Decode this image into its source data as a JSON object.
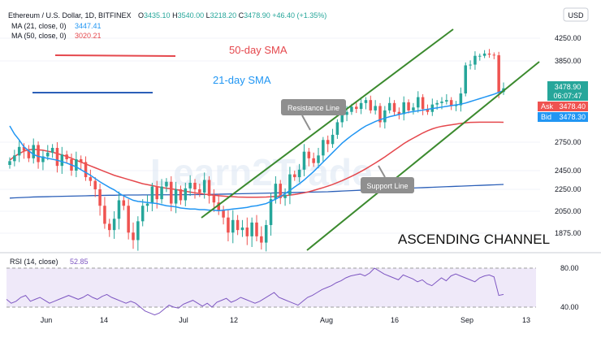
{
  "header": {
    "pair": "Ethereum / U.S. Dollar, 1D, BITFINEX",
    "ohlc": [
      {
        "key": "O",
        "val": "3435.10"
      },
      {
        "key": "H",
        "val": "3540.00"
      },
      {
        "key": "L",
        "val": "3218.20"
      },
      {
        "key": "C",
        "val": "3478.90"
      }
    ],
    "change": "+46.40 (+1.35%)",
    "ma21_label": "MA (21, close, 0)",
    "ma21_value": "3447.41",
    "ma50_label": "MA (50, close, 0)",
    "ma50_value": "3020.21",
    "currency": "USD"
  },
  "annotations": {
    "sma50": "50-day SMA",
    "sma21": "21-day SMA",
    "resistance": "Resistance Line",
    "support": "Support Line",
    "channel": "ASCENDING CHANNEL",
    "watermark": "Learn2Trade"
  },
  "price_tags": {
    "last": "3478.90",
    "countdown": "06:07:47",
    "ask_label": "Ask",
    "ask": "3478.40",
    "bid_label": "Bid",
    "bid": "3478.30"
  },
  "rsi": {
    "label": "RSI (14, close)",
    "value": "52.85"
  },
  "colors": {
    "up": "#26a69a",
    "down": "#ef5350",
    "ma21": "#2196f3",
    "ma50": "#e5484d",
    "channel": "#3b8a2e",
    "rsi": "#7e57c2"
  },
  "chart_data": [
    {
      "type": "candlestick",
      "title": "Ethereum / U.S. Dollar, 1D, BITFINEX",
      "x_ticks": [
        "Jun",
        "14",
        "Jul",
        "12",
        "Aug",
        "16",
        "Sep",
        "13"
      ],
      "y_ticks": [
        "4250.00",
        "3850.00",
        "2750.00",
        "2450.00",
        "2250.00",
        "2050.00",
        "1875.00"
      ],
      "ylim": [
        1720,
        4520
      ],
      "close": [
        2550,
        2610,
        2700,
        2660,
        2580,
        2720,
        2540,
        2600,
        2640,
        2690,
        2500,
        2620,
        2570,
        2450,
        2570,
        2540,
        2380,
        2340,
        2250,
        2100,
        1950,
        1900,
        1990,
        2150,
        2100,
        1880,
        1820,
        1970,
        2100,
        2120,
        2280,
        2160,
        2280,
        2330,
        2120,
        2250,
        2150,
        2260,
        2320,
        2250,
        2220,
        2350,
        2190,
        2130,
        2060,
        2000,
        1880,
        1980,
        1900,
        1920,
        1850,
        1960,
        1850,
        1800,
        1940,
        2160,
        2310,
        2170,
        2200,
        2410,
        2380,
        2460,
        2650,
        2580,
        2530,
        2610,
        2780,
        2730,
        2850,
        3020,
        3120,
        3160,
        3230,
        3200,
        3280,
        3320,
        3180,
        3240,
        3020,
        3180,
        3280,
        3160,
        3130,
        3290,
        3180,
        3220,
        3360,
        3200,
        3160,
        3260,
        3280,
        3300,
        3320,
        3240,
        3250,
        3410,
        3790,
        3800,
        3940,
        3940,
        3980,
        3960,
        3950,
        3430,
        3479
      ],
      "ma21": [
        2970,
        2860,
        2780,
        2700,
        2660,
        2620,
        2600,
        2590,
        2580,
        2570,
        2560,
        2545,
        2530,
        2510,
        2490,
        2460,
        2430,
        2400,
        2365,
        2330,
        2300,
        2270,
        2245,
        2215,
        2190,
        2170,
        2150,
        2140,
        2135,
        2130,
        2125,
        2120,
        2110,
        2100,
        2095,
        2090,
        2080,
        2075,
        2070,
        2070,
        2065,
        2065,
        2060,
        2060,
        2055,
        2060,
        2065,
        2070,
        2075,
        2080,
        2085,
        2095,
        2100,
        2110,
        2120,
        2140,
        2160,
        2185,
        2210,
        2240,
        2275,
        2310,
        2350,
        2395,
        2440,
        2490,
        2540,
        2590,
        2640,
        2690,
        2740,
        2790,
        2840,
        2885,
        2930,
        2970,
        3000,
        3030,
        3055,
        3075,
        3095,
        3110,
        3125,
        3140,
        3155,
        3165,
        3175,
        3185,
        3195,
        3205,
        3215,
        3225,
        3235,
        3245,
        3255,
        3265,
        3280,
        3300,
        3320,
        3340,
        3360,
        3380,
        3400,
        3425,
        3447
      ],
      "ma50": [
        2560,
        2600,
        2630,
        2655,
        2670,
        2675,
        2670,
        2665,
        2655,
        2645,
        2630,
        2615,
        2600,
        2580,
        2560,
        2540,
        2520,
        2500,
        2480,
        2460,
        2440,
        2420,
        2400,
        2385,
        2370,
        2355,
        2340,
        2325,
        2310,
        2300,
        2290,
        2280,
        2270,
        2262,
        2255,
        2248,
        2240,
        2232,
        2225,
        2218,
        2212,
        2206,
        2200,
        2196,
        2192,
        2188,
        2184,
        2182,
        2180,
        2179,
        2178,
        2178,
        2178,
        2179,
        2180,
        2182,
        2185,
        2188,
        2192,
        2197,
        2203,
        2210,
        2218,
        2228,
        2240,
        2253,
        2268,
        2284,
        2302,
        2322,
        2343,
        2366,
        2390,
        2415,
        2442,
        2470,
        2500,
        2530,
        2562,
        2595,
        2630,
        2665,
        2700,
        2735,
        2770,
        2805,
        2840,
        2875,
        2905,
        2930,
        2950,
        2965,
        2975,
        2985,
        2995,
        3005,
        3012,
        3018,
        3020,
        3021,
        3021,
        3021,
        3021,
        3021,
        3020
      ],
      "ma200": [
        2170,
        2172,
        2174,
        2176,
        2178,
        2180,
        2181,
        2182,
        2183,
        2184,
        2185,
        2186,
        2187,
        2188,
        2189,
        2190,
        2191,
        2192,
        2193,
        2194,
        2195,
        2196,
        2196,
        2197,
        2197,
        2198,
        2198,
        2198,
        2199,
        2199,
        2199,
        2200,
        2200,
        2200,
        2200,
        2200,
        2201,
        2201,
        2201,
        2202,
        2202,
        2203,
        2203,
        2204,
        2205,
        2206,
        2207,
        2208,
        2209,
        2210,
        2211,
        2212,
        2213,
        2214,
        2215,
        2216,
        2217,
        2218,
        2219,
        2220,
        2221,
        2222,
        2223,
        2224,
        2225,
        2226,
        2227,
        2228,
        2230,
        2232,
        2234,
        2236,
        2238,
        2240,
        2242,
        2244,
        2246,
        2248,
        2250,
        2252,
        2254,
        2256,
        2258,
        2260,
        2262,
        2264,
        2266,
        2268,
        2270,
        2272,
        2274,
        2276,
        2278,
        2280,
        2282,
        2284,
        2286,
        2288,
        2290,
        2292,
        2294,
        2296,
        2298,
        2300,
        2302
      ]
    },
    {
      "type": "line",
      "title": "RSI (14, close)",
      "y_ticks": [
        "80.00",
        "40.00"
      ],
      "ylim": [
        20,
        86
      ],
      "values": [
        48,
        44,
        46,
        50,
        52,
        46,
        48,
        50,
        47,
        44,
        46,
        48,
        50,
        52,
        50,
        48,
        50,
        53,
        50,
        48,
        51,
        53,
        50,
        48,
        46,
        44,
        46,
        44,
        40,
        36,
        34,
        32,
        34,
        38,
        42,
        40,
        39,
        43,
        45,
        47,
        44,
        41,
        44,
        40,
        45,
        47,
        49,
        45,
        47,
        50,
        48,
        46,
        44,
        46,
        49,
        52,
        55,
        50,
        48,
        46,
        44,
        42,
        46,
        50,
        52,
        55,
        58,
        60,
        62,
        65,
        67,
        70,
        72,
        73,
        74,
        72,
        75,
        80,
        77,
        74,
        72,
        70,
        68,
        73,
        71,
        69,
        66,
        68,
        64,
        62,
        66,
        70,
        67,
        72,
        74,
        72,
        70,
        68,
        66,
        70,
        72,
        73,
        71,
        52,
        53
      ]
    }
  ]
}
